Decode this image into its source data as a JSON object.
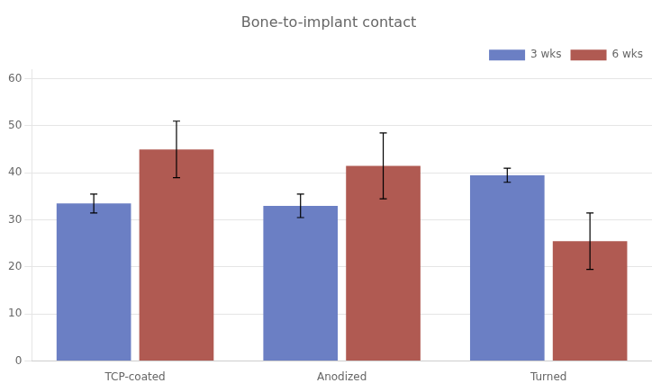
{
  "chart_data": {
    "type": "bar",
    "title": "Bone-to-implant contact",
    "categories": [
      "TCP-coated",
      "Anodized",
      "Turned"
    ],
    "series": [
      {
        "name": "3 wks",
        "color": "#6b7fc4",
        "values": [
          33.5,
          33.0,
          39.5
        ],
        "errors": [
          2.0,
          2.5,
          1.5
        ]
      },
      {
        "name": "6 wks",
        "color": "#b05a52",
        "values": [
          45.0,
          41.5,
          25.5
        ],
        "errors": [
          6.0,
          7.0,
          6.0
        ]
      }
    ],
    "ylim": [
      0,
      62
    ],
    "yticks": [
      0,
      10,
      20,
      30,
      40,
      50,
      60
    ],
    "grid": true,
    "legend": "upper right"
  }
}
